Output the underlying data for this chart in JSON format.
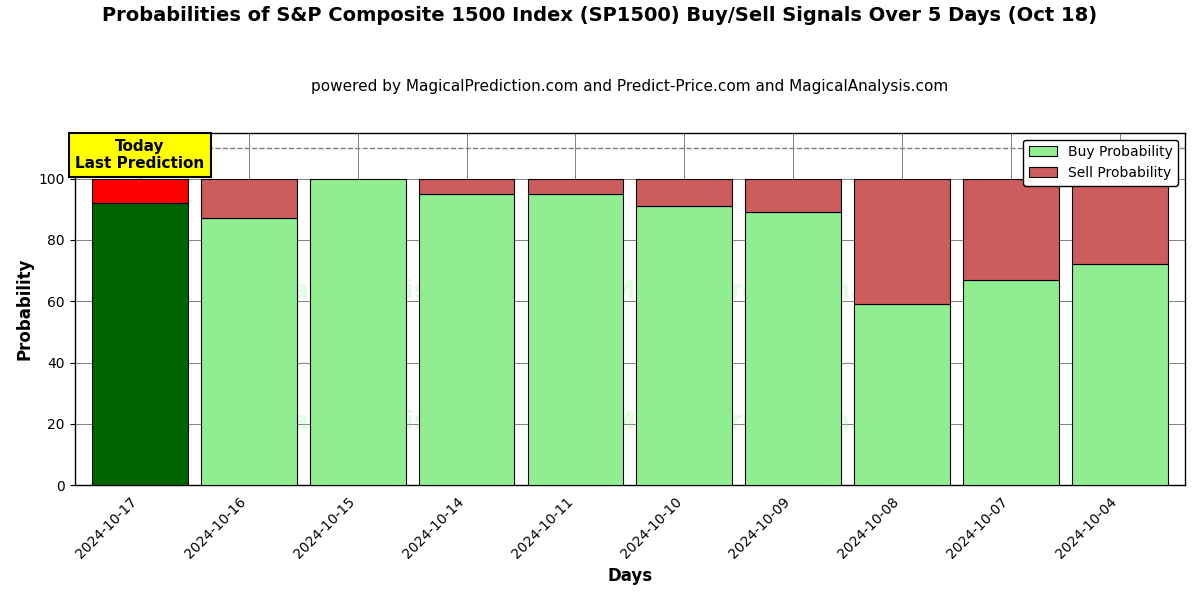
{
  "title": "Probabilities of S&P Composite 1500 Index (SP1500) Buy/Sell Signals Over 5 Days (Oct 18)",
  "subtitle": "powered by MagicalPrediction.com and Predict-Price.com and MagicalAnalysis.com",
  "xlabel": "Days",
  "ylabel": "Probability",
  "categories": [
    "2024-10-17",
    "2024-10-16",
    "2024-10-15",
    "2024-10-14",
    "2024-10-11",
    "2024-10-10",
    "2024-10-09",
    "2024-10-08",
    "2024-10-07",
    "2024-10-04"
  ],
  "buy_values": [
    92,
    87,
    100,
    95,
    95,
    91,
    89,
    59,
    67,
    72
  ],
  "sell_values": [
    8,
    13,
    0,
    5,
    5,
    9,
    11,
    41,
    33,
    28
  ],
  "buy_color_today": "#006400",
  "sell_color_today": "#FF0000",
  "buy_color_normal": "#90EE90",
  "sell_color_normal": "#CD5C5C",
  "bar_edge_color": "#000000",
  "background_color": "#ffffff",
  "plot_bg_color": "#ffffff",
  "grid_color": "#808080",
  "ylim": [
    0,
    115
  ],
  "yticks": [
    0,
    20,
    40,
    60,
    80,
    100
  ],
  "dashed_line_y": 110,
  "today_annotation": "Today\nLast Prediction",
  "legend_buy": "Buy Probability",
  "legend_sell": "Sell Probability",
  "title_fontsize": 14,
  "subtitle_fontsize": 11,
  "axis_label_fontsize": 12,
  "tick_fontsize": 10,
  "bar_width": 0.88
}
